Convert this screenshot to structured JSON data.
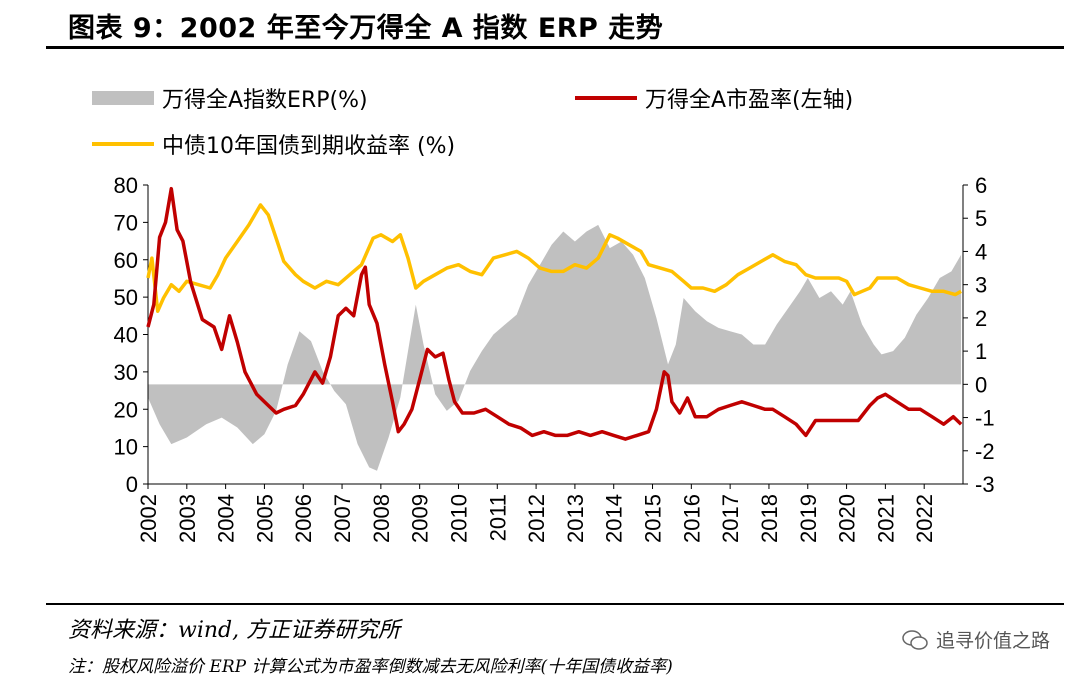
{
  "title": "图表 9：2002 年至今万得全 A 指数 ERP 走势",
  "legend": {
    "erp": "万得全A指数ERP(%)",
    "pe": "万得全A市盈率(左轴)",
    "yield": "中债10年国债到期收益率 (%)"
  },
  "source": "资料来源：wind, 方正证券研究所",
  "note": "注：股权风险溢价 ERP 计算公式为市盈率倒数减去无风险利率(十年国债收益率)",
  "watermark": "追寻价值之路",
  "colors": {
    "erp": "#c0c0c0",
    "pe": "#c00000",
    "yield": "#ffc000"
  },
  "chart_data": {
    "type": "line",
    "title": "2002 年至今万得全 A 指数 ERP 走势",
    "x_ticks": [
      "2002",
      "2003",
      "2004",
      "2005",
      "2006",
      "2007",
      "2008",
      "2009",
      "2010",
      "2011",
      "2012",
      "2013",
      "2014",
      "2015",
      "2016",
      "2017",
      "2018",
      "2019",
      "2020",
      "2021",
      "2022"
    ],
    "left_axis": {
      "ylim": [
        0,
        80
      ],
      "ticks": [
        "0",
        "10",
        "20",
        "30",
        "40",
        "50",
        "60",
        "70",
        "80"
      ]
    },
    "right_axis": {
      "ylim": [
        -3,
        6
      ],
      "ticks": [
        "-3",
        "-2",
        "-1",
        "0",
        "1",
        "2",
        "3",
        "4",
        "5",
        "6"
      ]
    },
    "series": [
      {
        "name": "万得全A指数ERP(%)",
        "type": "area",
        "axis": "right",
        "points": [
          [
            2002.0,
            -0.4
          ],
          [
            2002.3,
            -1.2
          ],
          [
            2002.6,
            -1.8
          ],
          [
            2003.0,
            -1.6
          ],
          [
            2003.5,
            -1.2
          ],
          [
            2003.9,
            -1.0
          ],
          [
            2004.3,
            -1.3
          ],
          [
            2004.7,
            -1.8
          ],
          [
            2005.0,
            -1.5
          ],
          [
            2005.3,
            -0.8
          ],
          [
            2005.6,
            0.6
          ],
          [
            2005.9,
            1.6
          ],
          [
            2006.2,
            1.3
          ],
          [
            2006.5,
            0.4
          ],
          [
            2006.8,
            -0.2
          ],
          [
            2007.1,
            -0.6
          ],
          [
            2007.4,
            -1.8
          ],
          [
            2007.7,
            -2.5
          ],
          [
            2007.9,
            -2.6
          ],
          [
            2008.2,
            -1.6
          ],
          [
            2008.5,
            -0.4
          ],
          [
            2008.7,
            1.0
          ],
          [
            2008.9,
            2.4
          ],
          [
            2009.1,
            1.2
          ],
          [
            2009.4,
            -0.3
          ],
          [
            2009.7,
            -0.8
          ],
          [
            2010.0,
            -0.5
          ],
          [
            2010.3,
            0.4
          ],
          [
            2010.6,
            1.0
          ],
          [
            2010.9,
            1.5
          ],
          [
            2011.2,
            1.8
          ],
          [
            2011.5,
            2.1
          ],
          [
            2011.8,
            3.0
          ],
          [
            2012.1,
            3.6
          ],
          [
            2012.4,
            4.2
          ],
          [
            2012.7,
            4.6
          ],
          [
            2013.0,
            4.3
          ],
          [
            2013.3,
            4.6
          ],
          [
            2013.6,
            4.8
          ],
          [
            2013.9,
            4.1
          ],
          [
            2014.2,
            4.3
          ],
          [
            2014.5,
            3.9
          ],
          [
            2014.8,
            3.2
          ],
          [
            2015.1,
            2.0
          ],
          [
            2015.4,
            0.6
          ],
          [
            2015.6,
            1.2
          ],
          [
            2015.8,
            2.6
          ],
          [
            2016.1,
            2.2
          ],
          [
            2016.4,
            1.9
          ],
          [
            2016.7,
            1.7
          ],
          [
            2017.0,
            1.6
          ],
          [
            2017.3,
            1.5
          ],
          [
            2017.6,
            1.2
          ],
          [
            2017.9,
            1.2
          ],
          [
            2018.2,
            1.8
          ],
          [
            2018.5,
            2.3
          ],
          [
            2018.8,
            2.8
          ],
          [
            2019.0,
            3.2
          ],
          [
            2019.3,
            2.6
          ],
          [
            2019.6,
            2.8
          ],
          [
            2019.9,
            2.4
          ],
          [
            2020.1,
            2.8
          ],
          [
            2020.4,
            1.8
          ],
          [
            2020.7,
            1.2
          ],
          [
            2020.9,
            0.9
          ],
          [
            2021.2,
            1.0
          ],
          [
            2021.5,
            1.4
          ],
          [
            2021.8,
            2.1
          ],
          [
            2022.1,
            2.6
          ],
          [
            2022.4,
            3.2
          ],
          [
            2022.7,
            3.4
          ],
          [
            2022.95,
            3.9
          ]
        ]
      },
      {
        "name": "万得全A市盈率(左轴)",
        "type": "line",
        "axis": "left",
        "points": [
          [
            2002.0,
            42
          ],
          [
            2002.15,
            48
          ],
          [
            2002.3,
            66
          ],
          [
            2002.45,
            70
          ],
          [
            2002.6,
            79
          ],
          [
            2002.75,
            68
          ],
          [
            2002.9,
            65
          ],
          [
            2003.1,
            54
          ],
          [
            2003.4,
            44
          ],
          [
            2003.7,
            42
          ],
          [
            2003.9,
            36
          ],
          [
            2004.1,
            45
          ],
          [
            2004.3,
            38
          ],
          [
            2004.5,
            30
          ],
          [
            2004.8,
            24
          ],
          [
            2005.0,
            22
          ],
          [
            2005.3,
            19
          ],
          [
            2005.5,
            20
          ],
          [
            2005.8,
            21
          ],
          [
            2006.0,
            24
          ],
          [
            2006.3,
            30
          ],
          [
            2006.5,
            27
          ],
          [
            2006.7,
            34
          ],
          [
            2006.9,
            45
          ],
          [
            2007.1,
            47
          ],
          [
            2007.3,
            45
          ],
          [
            2007.5,
            56
          ],
          [
            2007.6,
            58
          ],
          [
            2007.7,
            48
          ],
          [
            2007.9,
            43
          ],
          [
            2008.1,
            32
          ],
          [
            2008.3,
            22
          ],
          [
            2008.45,
            14
          ],
          [
            2008.6,
            16
          ],
          [
            2008.8,
            20
          ],
          [
            2009.0,
            28
          ],
          [
            2009.2,
            36
          ],
          [
            2009.4,
            34
          ],
          [
            2009.6,
            35
          ],
          [
            2009.75,
            28
          ],
          [
            2009.9,
            22
          ],
          [
            2010.1,
            19
          ],
          [
            2010.4,
            19
          ],
          [
            2010.7,
            20
          ],
          [
            2011.0,
            18
          ],
          [
            2011.3,
            16
          ],
          [
            2011.6,
            15
          ],
          [
            2011.9,
            13
          ],
          [
            2012.2,
            14
          ],
          [
            2012.5,
            13
          ],
          [
            2012.8,
            13
          ],
          [
            2013.1,
            14
          ],
          [
            2013.4,
            13
          ],
          [
            2013.7,
            14
          ],
          [
            2014.0,
            13
          ],
          [
            2014.3,
            12
          ],
          [
            2014.6,
            13
          ],
          [
            2014.9,
            14
          ],
          [
            2015.1,
            20
          ],
          [
            2015.3,
            30
          ],
          [
            2015.4,
            29
          ],
          [
            2015.5,
            22
          ],
          [
            2015.7,
            19
          ],
          [
            2015.9,
            23
          ],
          [
            2016.1,
            18
          ],
          [
            2016.4,
            18
          ],
          [
            2016.7,
            20
          ],
          [
            2017.0,
            21
          ],
          [
            2017.3,
            22
          ],
          [
            2017.6,
            21
          ],
          [
            2017.9,
            20
          ],
          [
            2018.1,
            20
          ],
          [
            2018.4,
            18
          ],
          [
            2018.7,
            16
          ],
          [
            2018.95,
            13
          ],
          [
            2019.2,
            17
          ],
          [
            2019.5,
            17
          ],
          [
            2019.8,
            17
          ],
          [
            2020.0,
            17
          ],
          [
            2020.3,
            17
          ],
          [
            2020.6,
            21
          ],
          [
            2020.8,
            23
          ],
          [
            2021.0,
            24
          ],
          [
            2021.3,
            22
          ],
          [
            2021.6,
            20
          ],
          [
            2021.9,
            20
          ],
          [
            2022.2,
            18
          ],
          [
            2022.5,
            16
          ],
          [
            2022.75,
            18
          ],
          [
            2022.95,
            16
          ]
        ]
      },
      {
        "name": "中债10年国债到期收益率 (%)",
        "type": "line",
        "axis": "right",
        "points": [
          [
            2002.0,
            3.2
          ],
          [
            2002.1,
            3.8
          ],
          [
            2002.25,
            2.2
          ],
          [
            2002.4,
            2.6
          ],
          [
            2002.6,
            3.0
          ],
          [
            2002.8,
            2.8
          ],
          [
            2003.0,
            3.1
          ],
          [
            2003.3,
            3.0
          ],
          [
            2003.6,
            2.9
          ],
          [
            2003.8,
            3.3
          ],
          [
            2004.0,
            3.8
          ],
          [
            2004.3,
            4.3
          ],
          [
            2004.6,
            4.8
          ],
          [
            2004.9,
            5.4
          ],
          [
            2005.1,
            5.1
          ],
          [
            2005.3,
            4.4
          ],
          [
            2005.5,
            3.7
          ],
          [
            2005.8,
            3.3
          ],
          [
            2006.0,
            3.1
          ],
          [
            2006.3,
            2.9
          ],
          [
            2006.6,
            3.1
          ],
          [
            2006.9,
            3.0
          ],
          [
            2007.2,
            3.3
          ],
          [
            2007.5,
            3.6
          ],
          [
            2007.8,
            4.4
          ],
          [
            2008.0,
            4.5
          ],
          [
            2008.3,
            4.3
          ],
          [
            2008.5,
            4.5
          ],
          [
            2008.7,
            3.8
          ],
          [
            2008.9,
            2.9
          ],
          [
            2009.1,
            3.1
          ],
          [
            2009.4,
            3.3
          ],
          [
            2009.7,
            3.5
          ],
          [
            2010.0,
            3.6
          ],
          [
            2010.3,
            3.4
          ],
          [
            2010.6,
            3.3
          ],
          [
            2010.9,
            3.8
          ],
          [
            2011.2,
            3.9
          ],
          [
            2011.5,
            4.0
          ],
          [
            2011.8,
            3.8
          ],
          [
            2012.1,
            3.5
          ],
          [
            2012.4,
            3.4
          ],
          [
            2012.7,
            3.4
          ],
          [
            2013.0,
            3.6
          ],
          [
            2013.3,
            3.5
          ],
          [
            2013.6,
            3.8
          ],
          [
            2013.9,
            4.5
          ],
          [
            2014.1,
            4.4
          ],
          [
            2014.4,
            4.2
          ],
          [
            2014.7,
            4.0
          ],
          [
            2014.9,
            3.6
          ],
          [
            2015.2,
            3.5
          ],
          [
            2015.5,
            3.4
          ],
          [
            2015.8,
            3.1
          ],
          [
            2016.0,
            2.9
          ],
          [
            2016.3,
            2.9
          ],
          [
            2016.6,
            2.8
          ],
          [
            2016.9,
            3.0
          ],
          [
            2017.2,
            3.3
          ],
          [
            2017.5,
            3.5
          ],
          [
            2017.8,
            3.7
          ],
          [
            2018.1,
            3.9
          ],
          [
            2018.4,
            3.7
          ],
          [
            2018.7,
            3.6
          ],
          [
            2018.95,
            3.3
          ],
          [
            2019.2,
            3.2
          ],
          [
            2019.5,
            3.2
          ],
          [
            2019.8,
            3.2
          ],
          [
            2020.0,
            3.1
          ],
          [
            2020.2,
            2.7
          ],
          [
            2020.4,
            2.8
          ],
          [
            2020.6,
            2.9
          ],
          [
            2020.8,
            3.2
          ],
          [
            2021.0,
            3.2
          ],
          [
            2021.3,
            3.2
          ],
          [
            2021.6,
            3.0
          ],
          [
            2021.9,
            2.9
          ],
          [
            2022.2,
            2.8
          ],
          [
            2022.5,
            2.8
          ],
          [
            2022.8,
            2.7
          ],
          [
            2022.95,
            2.8
          ]
        ]
      }
    ]
  }
}
